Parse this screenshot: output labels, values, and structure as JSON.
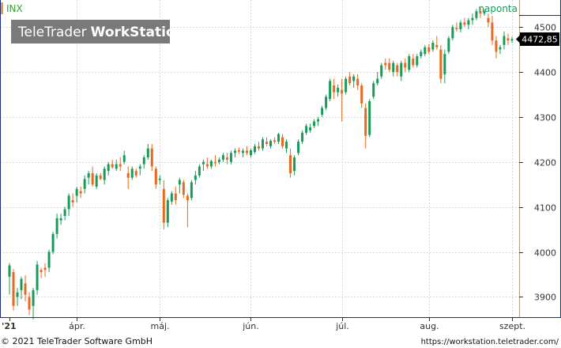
{
  "symbol": "INX",
  "period": "naponta",
  "brand": {
    "light": "TeleTrader",
    "bold": "WorkStation"
  },
  "last_price": "4472,85",
  "footer": {
    "copyright": "© 2021  TeleTrader Software GmbH",
    "url": "https://workstation.teletrader.com/"
  },
  "colors": {
    "up": "#1a9a5a",
    "down": "#e8681e",
    "grid": "#d8d8d8",
    "axis": "#1c2a8a",
    "accent": "#f0a020",
    "brand_bg": "#7a7a7a"
  },
  "chart_data": {
    "type": "candlestick",
    "title": "",
    "ylim": [
      3855,
      4560
    ],
    "y_ticks": [
      3900,
      4000,
      4100,
      4200,
      4300,
      4400,
      4500
    ],
    "y_tick_labels": [
      "3900",
      "4000",
      "4100",
      "4200",
      "4300",
      "4400",
      "4500"
    ],
    "x_tick_labels": [
      {
        "label": "'21",
        "index": 0
      },
      {
        "label": "ápr.",
        "index": 17
      },
      {
        "label": "máj.",
        "index": 38
      },
      {
        "label": "jún.",
        "index": 61
      },
      {
        "label": "júl.",
        "index": 84
      },
      {
        "label": "aug.",
        "index": 106
      },
      {
        "label": "szept.",
        "index": 127
      }
    ],
    "grid": true,
    "ohlc": [
      [
        3945,
        3975,
        3905,
        3970
      ],
      [
        3955,
        3962,
        3870,
        3880
      ],
      [
        3900,
        3920,
        3880,
        3910
      ],
      [
        3915,
        3945,
        3895,
        3940
      ],
      [
        3930,
        3948,
        3890,
        3905
      ],
      [
        3900,
        3910,
        3860,
        3872
      ],
      [
        3880,
        3920,
        3850,
        3915
      ],
      [
        3915,
        3980,
        3905,
        3972
      ],
      [
        3960,
        3965,
        3942,
        3955
      ],
      [
        3965,
        3975,
        3945,
        3960
      ],
      [
        3965,
        4005,
        3955,
        4000
      ],
      [
        4000,
        4045,
        3995,
        4040
      ],
      [
        4040,
        4085,
        4030,
        4075
      ],
      [
        4070,
        4085,
        4060,
        4075
      ],
      [
        4080,
        4100,
        4070,
        4095
      ],
      [
        4095,
        4130,
        4080,
        4125
      ],
      [
        4115,
        4130,
        4100,
        4110
      ],
      [
        4125,
        4145,
        4110,
        4140
      ],
      [
        4135,
        4145,
        4120,
        4130
      ],
      [
        4140,
        4170,
        4130,
        4162
      ],
      [
        4165,
        4180,
        4150,
        4175
      ],
      [
        4175,
        4190,
        4145,
        4150
      ],
      [
        4145,
        4175,
        4140,
        4170
      ],
      [
        4170,
        4175,
        4160,
        4162
      ],
      [
        4160,
        4190,
        4150,
        4185
      ],
      [
        4180,
        4200,
        4170,
        4195
      ],
      [
        4195,
        4205,
        4185,
        4188
      ],
      [
        4185,
        4205,
        4180,
        4195
      ],
      [
        4195,
        4210,
        4180,
        4190
      ],
      [
        4200,
        4225,
        4195,
        4215
      ],
      [
        4175,
        4190,
        4140,
        4165
      ],
      [
        4165,
        4190,
        4160,
        4185
      ],
      [
        4180,
        4185,
        4165,
        4170
      ],
      [
        4185,
        4195,
        4170,
        4190
      ],
      [
        4195,
        4215,
        4185,
        4210
      ],
      [
        4210,
        4240,
        4205,
        4230
      ],
      [
        4230,
        4240,
        4180,
        4190
      ],
      [
        4185,
        4190,
        4140,
        4150
      ],
      [
        4160,
        4170,
        4150,
        4163
      ],
      [
        4140,
        4160,
        4050,
        4065
      ],
      [
        4065,
        4120,
        4055,
        4115
      ],
      [
        4112,
        4135,
        4105,
        4130
      ],
      [
        4130,
        4145,
        4105,
        4115
      ],
      [
        4150,
        4165,
        4130,
        4160
      ],
      [
        4155,
        4160,
        4120,
        4127
      ],
      [
        4125,
        4130,
        4055,
        4115
      ],
      [
        4120,
        4160,
        4115,
        4155
      ],
      [
        4160,
        4180,
        4150,
        4170
      ],
      [
        4170,
        4195,
        4165,
        4190
      ],
      [
        4195,
        4205,
        4180,
        4200
      ],
      [
        4195,
        4210,
        4185,
        4190
      ],
      [
        4190,
        4205,
        4185,
        4202
      ],
      [
        4200,
        4215,
        4190,
        4197
      ],
      [
        4200,
        4210,
        4195,
        4205
      ],
      [
        4205,
        4220,
        4200,
        4215
      ],
      [
        4210,
        4220,
        4195,
        4205
      ],
      [
        4200,
        4225,
        4195,
        4220
      ],
      [
        4220,
        4230,
        4210,
        4225
      ],
      [
        4226,
        4232,
        4218,
        4223
      ],
      [
        4220,
        4230,
        4210,
        4225
      ],
      [
        4225,
        4235,
        4215,
        4220
      ],
      [
        4215,
        4230,
        4210,
        4226
      ],
      [
        4222,
        4240,
        4218,
        4235
      ],
      [
        4235,
        4245,
        4225,
        4230
      ],
      [
        4230,
        4255,
        4225,
        4250
      ],
      [
        4245,
        4255,
        4235,
        4240
      ],
      [
        4235,
        4250,
        4230,
        4247
      ],
      [
        4248,
        4255,
        4240,
        4245
      ],
      [
        4245,
        4265,
        4240,
        4262
      ],
      [
        4255,
        4262,
        4230,
        4235
      ],
      [
        4230,
        4250,
        4220,
        4245
      ],
      [
        4215,
        4230,
        4165,
        4175
      ],
      [
        4180,
        4215,
        4170,
        4210
      ],
      [
        4220,
        4250,
        4215,
        4245
      ],
      [
        4245,
        4270,
        4240,
        4265
      ],
      [
        4265,
        4285,
        4260,
        4280
      ],
      [
        4270,
        4285,
        4265,
        4277
      ],
      [
        4280,
        4295,
        4275,
        4290
      ],
      [
        4290,
        4300,
        4280,
        4295
      ],
      [
        4305,
        4325,
        4300,
        4320
      ],
      [
        4320,
        4350,
        4315,
        4345
      ],
      [
        4340,
        4385,
        4335,
        4380
      ],
      [
        4370,
        4385,
        4340,
        4355
      ],
      [
        4355,
        4372,
        4345,
        4365
      ],
      [
        4360,
        4385,
        4290,
        4352
      ],
      [
        4355,
        4390,
        4350,
        4385
      ],
      [
        4390,
        4400,
        4370,
        4375
      ],
      [
        4380,
        4395,
        4365,
        4390
      ],
      [
        4385,
        4395,
        4360,
        4370
      ],
      [
        4370,
        4375,
        4320,
        4330
      ],
      [
        4320,
        4330,
        4230,
        4258
      ],
      [
        4260,
        4340,
        4255,
        4335
      ],
      [
        4345,
        4380,
        4340,
        4375
      ],
      [
        4375,
        4400,
        4370,
        4385
      ],
      [
        4390,
        4420,
        4385,
        4415
      ],
      [
        4420,
        4430,
        4405,
        4415
      ],
      [
        4420,
        4430,
        4400,
        4405
      ],
      [
        4400,
        4425,
        4390,
        4420
      ],
      [
        4415,
        4420,
        4390,
        4400
      ],
      [
        4390,
        4425,
        4380,
        4420
      ],
      [
        4420,
        4430,
        4400,
        4410
      ],
      [
        4405,
        4440,
        4400,
        4435
      ],
      [
        4430,
        4440,
        4410,
        4415
      ],
      [
        4415,
        4440,
        4410,
        4435
      ],
      [
        4435,
        4450,
        4430,
        4445
      ],
      [
        4440,
        4460,
        4435,
        4455
      ],
      [
        4455,
        4462,
        4440,
        4445
      ],
      [
        4450,
        4470,
        4445,
        4465
      ],
      [
        4460,
        4480,
        4450,
        4455
      ],
      [
        4450,
        4460,
        4375,
        4385
      ],
      [
        4395,
        4450,
        4375,
        4440
      ],
      [
        4445,
        4480,
        4440,
        4475
      ],
      [
        4475,
        4505,
        4470,
        4500
      ],
      [
        4498,
        4510,
        4490,
        4495
      ],
      [
        4495,
        4515,
        4488,
        4510
      ],
      [
        4510,
        4520,
        4500,
        4505
      ],
      [
        4505,
        4520,
        4495,
        4515
      ],
      [
        4515,
        4530,
        4505,
        4520
      ],
      [
        4520,
        4540,
        4515,
        4535
      ],
      [
        4535,
        4545,
        4520,
        4530
      ],
      [
        4530,
        4540,
        4525,
        4535
      ],
      [
        4520,
        4530,
        4500,
        4510
      ],
      [
        4510,
        4525,
        4460,
        4470
      ],
      [
        4470,
        4480,
        4430,
        4445
      ],
      [
        4450,
        4460,
        4440,
        4455
      ],
      [
        4460,
        4490,
        4450,
        4480
      ],
      [
        4475,
        4485,
        4460,
        4470
      ],
      [
        4470,
        4478,
        4465,
        4473
      ]
    ]
  }
}
